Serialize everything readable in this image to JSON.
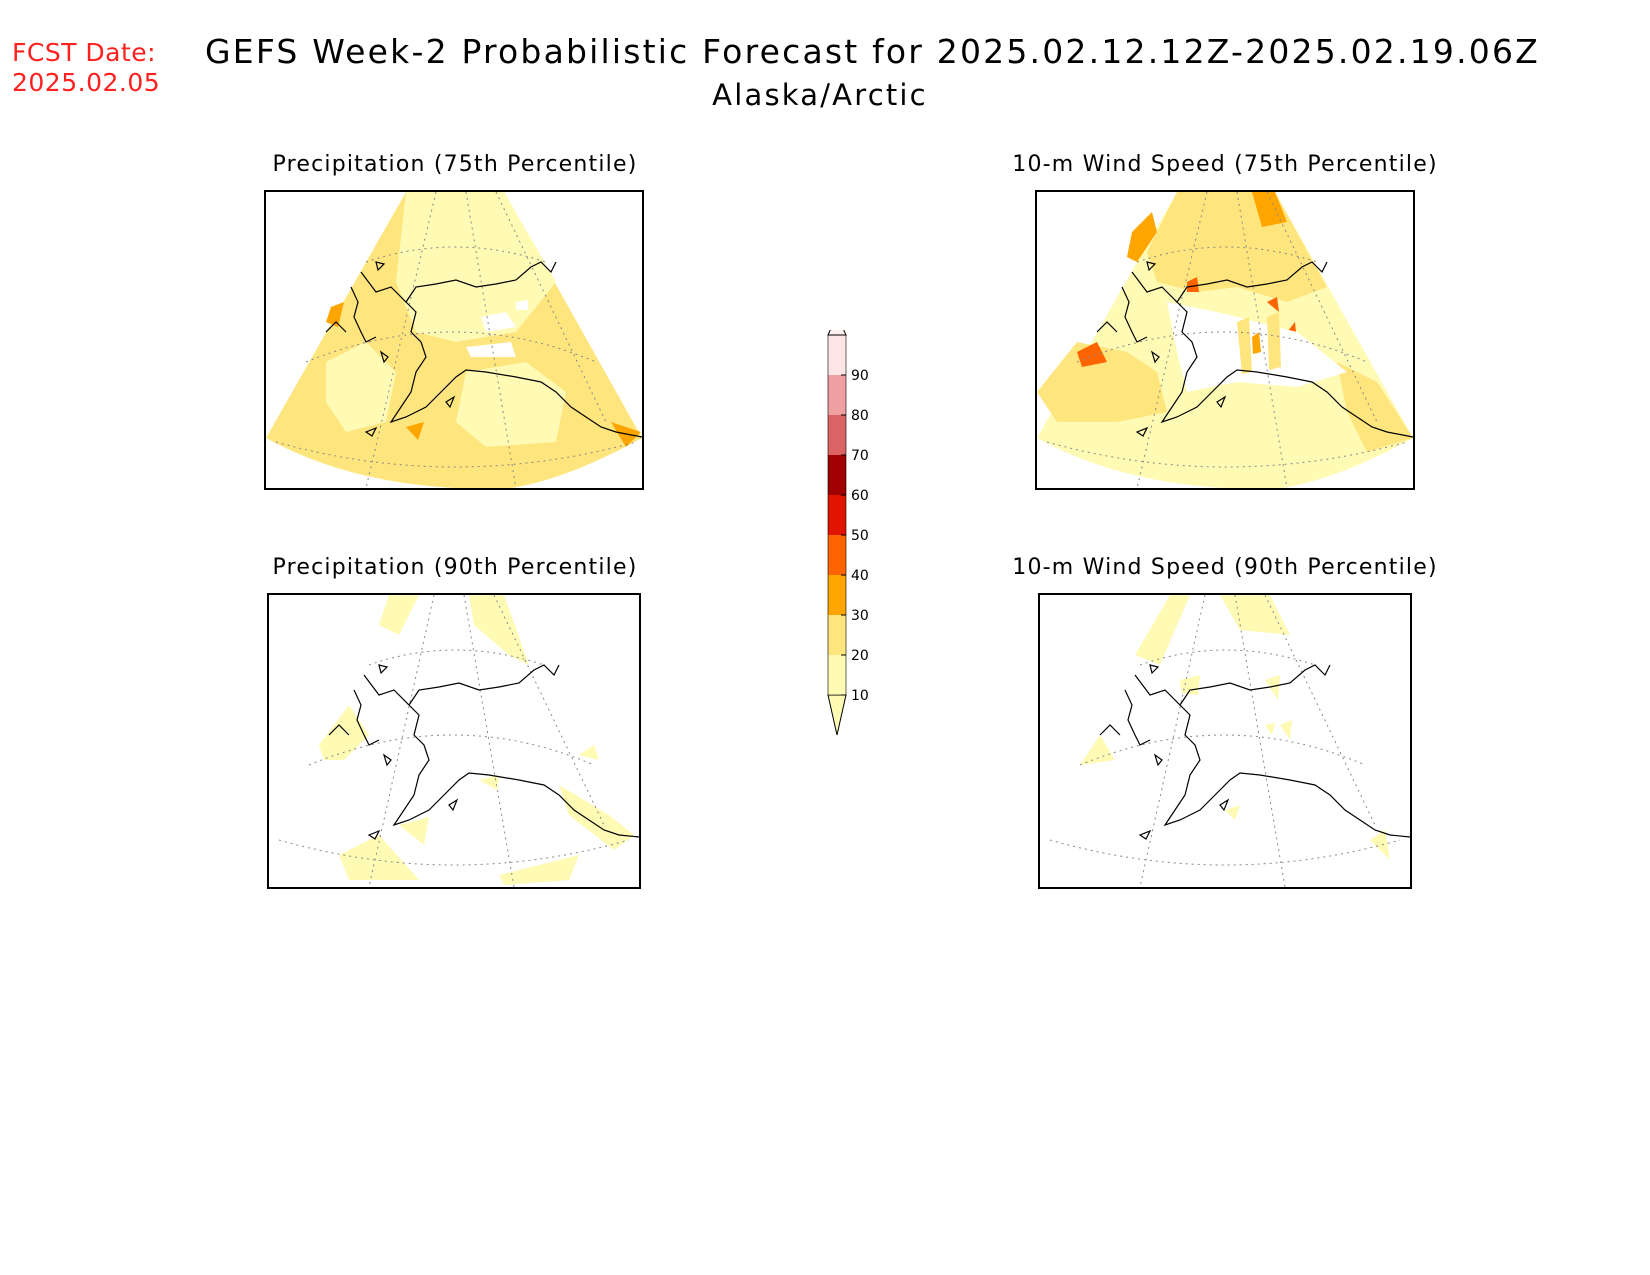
{
  "header": {
    "fcst_label": "FCST Date:",
    "fcst_date": "2025.02.05",
    "title": "GEFS Week-2 Probabilistic Forecast for 2025.02.12.12Z-2025.02.19.06Z",
    "region": "Alaska/Arctic"
  },
  "panels": [
    {
      "title": "Precipitation (75th Percentile)"
    },
    {
      "title": "10-m Wind Speed (75th Percentile)"
    },
    {
      "title": "Precipitation (90th Percentile)"
    },
    {
      "title": "10-m Wind Speed (90th Percentile)"
    }
  ],
  "colorbar": {
    "levels": [
      "10",
      "20",
      "30",
      "40",
      "50",
      "60",
      "70",
      "80",
      "90"
    ],
    "colors": [
      "#fffab4",
      "#ffe57d",
      "#ffa500",
      "#ff6400",
      "#e11400",
      "#a00000",
      "#dc6464",
      "#f0a0a0",
      "#ffe6e6"
    ]
  }
}
